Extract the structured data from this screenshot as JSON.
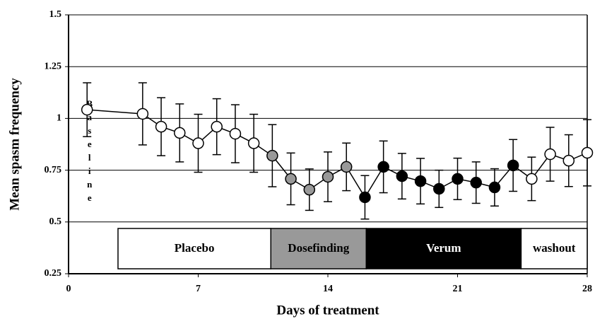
{
  "chart_data": {
    "type": "line",
    "xlabel": "Days of treatment",
    "ylabel": "Mean spasm frequency",
    "baseline_label": "Baseline",
    "x": [
      1,
      4,
      5,
      6,
      7,
      8,
      9,
      10,
      11,
      12,
      13,
      14,
      15,
      16,
      17,
      18,
      19,
      20,
      21,
      22,
      23,
      24,
      25,
      26,
      27,
      28
    ],
    "series": [
      {
        "name": "Mean spasm frequency",
        "color": "#000000",
        "values": [
          1.042,
          1.022,
          0.96,
          0.93,
          0.88,
          0.96,
          0.926,
          0.88,
          0.82,
          0.708,
          0.656,
          0.718,
          0.766,
          0.619,
          0.766,
          0.721,
          0.697,
          0.66,
          0.708,
          0.69,
          0.667,
          0.773,
          0.708,
          0.827,
          0.796,
          0.834
        ],
        "errors": [
          0.13,
          0.15,
          0.14,
          0.14,
          0.14,
          0.135,
          0.14,
          0.14,
          0.15,
          0.125,
          0.1,
          0.12,
          0.115,
          0.105,
          0.125,
          0.11,
          0.11,
          0.09,
          0.1,
          0.1,
          0.09,
          0.125,
          0.105,
          0.13,
          0.125,
          0.16
        ],
        "point_colors": [
          "#ffffff",
          "#ffffff",
          "#ffffff",
          "#ffffff",
          "#ffffff",
          "#ffffff",
          "#ffffff",
          "#ffffff",
          "#999999",
          "#999999",
          "#999999",
          "#999999",
          "#999999",
          "#000000",
          "#000000",
          "#000000",
          "#000000",
          "#000000",
          "#000000",
          "#000000",
          "#000000",
          "#000000",
          "#ffffff",
          "#ffffff",
          "#ffffff",
          "#ffffff"
        ]
      }
    ],
    "phases": [
      {
        "label": "Placebo",
        "start": 2.67,
        "end": 10.92,
        "color": "#ffffff",
        "text_color": "#000000"
      },
      {
        "label": "Dosefinding",
        "start": 10.92,
        "end": 16.07,
        "color": "#999999",
        "text_color": "#000000"
      },
      {
        "label": "Verum",
        "start": 16.07,
        "end": 24.43,
        "color": "#000000",
        "text_color": "#ffffff"
      },
      {
        "label": "washout",
        "start": 24.43,
        "end": 28,
        "color": "#ffffff",
        "text_color": "#000000"
      }
    ],
    "xlim": [
      0,
      28
    ],
    "xticks": [
      0,
      7,
      14,
      21,
      28
    ],
    "ylim": [
      0.25,
      1.5
    ],
    "yticks": [
      0.25,
      0.5,
      0.75,
      1,
      1.25,
      1.5
    ],
    "grid": true
  }
}
